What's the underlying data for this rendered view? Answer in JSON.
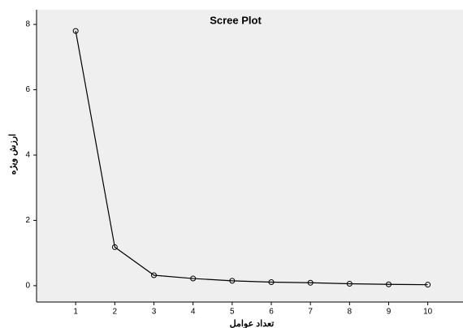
{
  "chart_data": {
    "type": "line",
    "title": "Scree Plot",
    "x_label": "تعداد عوامل",
    "y_label": "ارزش ویژه",
    "x": [
      1,
      2,
      3,
      4,
      5,
      6,
      7,
      8,
      9,
      10
    ],
    "values": [
      7.8,
      1.18,
      0.32,
      0.22,
      0.15,
      0.11,
      0.09,
      0.06,
      0.04,
      0.03
    ],
    "color": "#000000",
    "xlim": [
      0,
      10.9
    ],
    "ylim": [
      -0.5,
      8.45
    ],
    "xticks": [
      1,
      2,
      3,
      4,
      5,
      6,
      7,
      8,
      9,
      10
    ],
    "yticks": [
      0,
      2,
      4,
      6,
      8
    ]
  }
}
